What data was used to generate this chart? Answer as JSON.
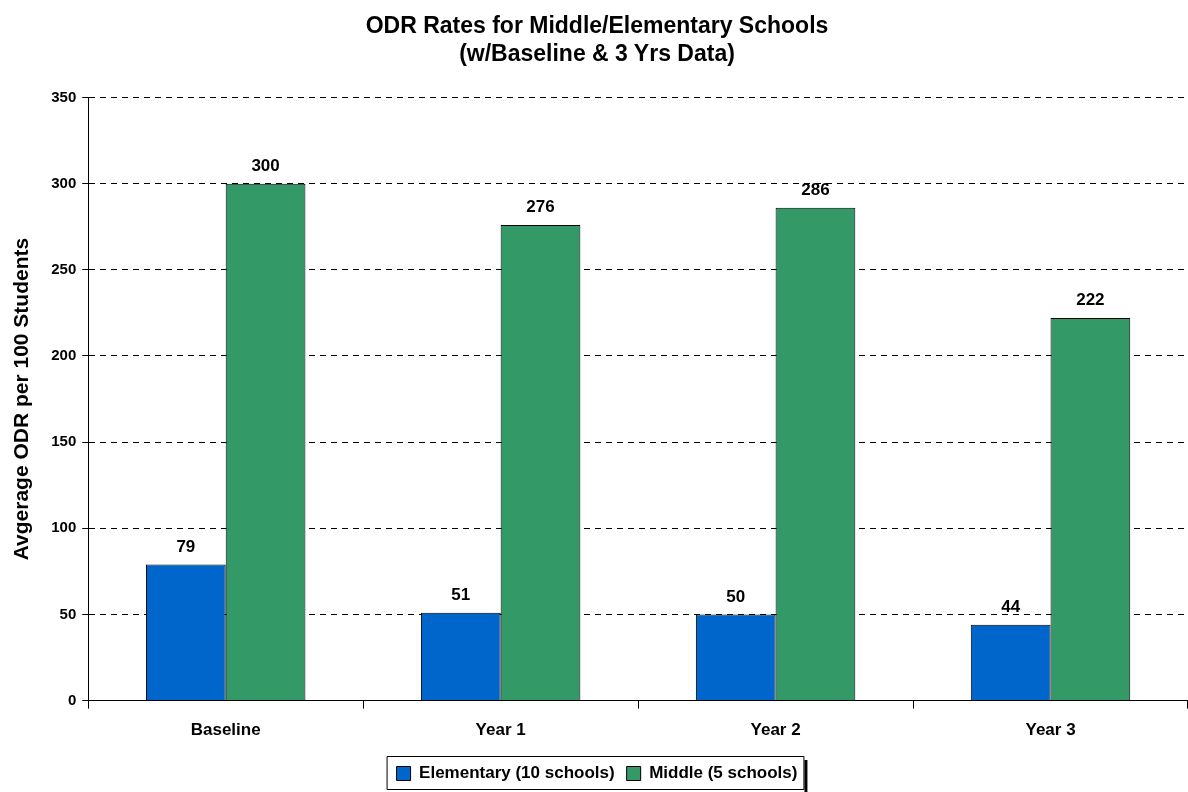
{
  "chart_data": {
    "type": "bar",
    "title": "ODR Rates for Middle/Elementary Schools\n(w/Baseline & 3 Yrs Data)",
    "ylabel": "Avgerage ODR per 100 Students",
    "categories": [
      "Baseline",
      "Year 1",
      "Year 2",
      "Year 3"
    ],
    "series": [
      {
        "name": "Elementary (10 schools)",
        "color": "#0066cc",
        "values": [
          79,
          51,
          50,
          44
        ]
      },
      {
        "name": "Middle (5 schools)",
        "color": "#339966",
        "values": [
          300,
          276,
          286,
          222
        ]
      }
    ],
    "ylim": [
      0,
      350
    ],
    "yticks": [
      0,
      50,
      100,
      150,
      200,
      250,
      300,
      350
    ],
    "grid": "y",
    "legend": "bottom",
    "data_labels": true
  }
}
